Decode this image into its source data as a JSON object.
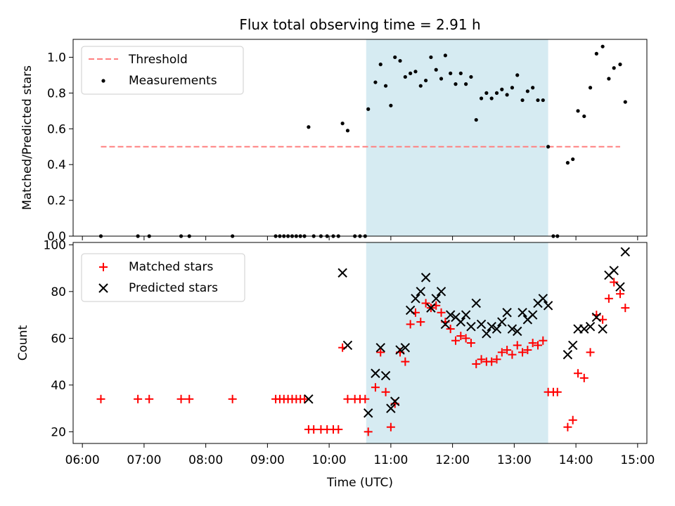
{
  "figure_title": "Flux total observing time = 2.91 h",
  "chart_data": [
    {
      "type": "scatter",
      "title": "Flux total observing time = 2.91 h",
      "ylabel": "Matched/Predicted stars",
      "xlabel": "",
      "x_unit": "hours (UTC)",
      "xlim": [
        "06:00",
        "15:00"
      ],
      "ylim": [
        0,
        1.1
      ],
      "yticks": [
        "0.0",
        "0.2",
        "0.4",
        "0.6",
        "0.8",
        "1.0"
      ],
      "legend": {
        "position": "top-left",
        "entries": [
          "Threshold",
          "Measurements"
        ]
      },
      "shaded_region": {
        "from": "10:36",
        "to": "13:33",
        "color": "#add8e6"
      },
      "threshold": {
        "name": "Threshold",
        "y": 0.5,
        "from": "06:18",
        "to": "14:43",
        "color": "#ff8080",
        "style": "dashed"
      },
      "series": [
        {
          "name": "Measurements",
          "color": "#000000",
          "points": [
            [
              "06:18",
              0
            ],
            [
              "06:54",
              0
            ],
            [
              "07:05",
              0
            ],
            [
              "07:36",
              0
            ],
            [
              "07:44",
              0
            ],
            [
              "08:26",
              0
            ],
            [
              "09:08",
              0
            ],
            [
              "09:12",
              0
            ],
            [
              "09:16",
              0
            ],
            [
              "09:20",
              0
            ],
            [
              "09:24",
              0
            ],
            [
              "09:28",
              0
            ],
            [
              "09:32",
              0
            ],
            [
              "09:36",
              0
            ],
            [
              "09:40",
              0.61
            ],
            [
              "09:45",
              0
            ],
            [
              "09:52",
              0
            ],
            [
              "09:58",
              0
            ],
            [
              "10:04",
              0
            ],
            [
              "10:09",
              0
            ],
            [
              "10:13",
              0.63
            ],
            [
              "10:18",
              0.59
            ],
            [
              "10:25",
              0
            ],
            [
              "10:30",
              0
            ],
            [
              "10:35",
              0
            ],
            [
              "10:38",
              0.71
            ],
            [
              "10:45",
              0.86
            ],
            [
              "10:50",
              0.96
            ],
            [
              "10:55",
              0.84
            ],
            [
              "11:00",
              0.73
            ],
            [
              "11:04",
              1.0
            ],
            [
              "11:09",
              0.98
            ],
            [
              "11:14",
              0.89
            ],
            [
              "11:19",
              0.91
            ],
            [
              "11:24",
              0.92
            ],
            [
              "11:29",
              0.84
            ],
            [
              "11:34",
              0.87
            ],
            [
              "11:39",
              1.0
            ],
            [
              "11:44",
              0.93
            ],
            [
              "11:49",
              0.88
            ],
            [
              "11:53",
              1.01
            ],
            [
              "11:58",
              0.91
            ],
            [
              "12:03",
              0.85
            ],
            [
              "12:08",
              0.91
            ],
            [
              "12:13",
              0.85
            ],
            [
              "12:18",
              0.89
            ],
            [
              "12:23",
              0.65
            ],
            [
              "12:28",
              0.77
            ],
            [
              "12:33",
              0.8
            ],
            [
              "12:38",
              0.77
            ],
            [
              "12:43",
              0.8
            ],
            [
              "12:48",
              0.82
            ],
            [
              "12:53",
              0.79
            ],
            [
              "12:58",
              0.83
            ],
            [
              "13:03",
              0.9
            ],
            [
              "13:08",
              0.76
            ],
            [
              "13:13",
              0.81
            ],
            [
              "13:18",
              0.83
            ],
            [
              "13:23",
              0.76
            ],
            [
              "13:28",
              0.76
            ],
            [
              "13:33",
              0.5
            ],
            [
              "13:38",
              0
            ],
            [
              "13:42",
              0
            ],
            [
              "13:52",
              0.41
            ],
            [
              "13:57",
              0.43
            ],
            [
              "14:02",
              0.7
            ],
            [
              "14:08",
              0.67
            ],
            [
              "14:14",
              0.83
            ],
            [
              "14:20",
              1.02
            ],
            [
              "14:26",
              1.06
            ],
            [
              "14:32",
              0.88
            ],
            [
              "14:37",
              0.94
            ],
            [
              "14:43",
              0.96
            ],
            [
              "14:48",
              0.75
            ]
          ]
        }
      ]
    },
    {
      "type": "scatter",
      "title": "",
      "ylabel": "Count",
      "xlabel": "Time (UTC)",
      "x_unit": "hours (UTC)",
      "xlim": [
        "06:00",
        "15:00"
      ],
      "ylim": [
        15,
        101
      ],
      "yticks": [
        "20",
        "40",
        "60",
        "80",
        "100"
      ],
      "xticks": [
        "06:00",
        "07:00",
        "08:00",
        "09:00",
        "10:00",
        "11:00",
        "12:00",
        "13:00",
        "14:00",
        "15:00"
      ],
      "legend": {
        "position": "top-left",
        "entries": [
          "Matched stars",
          "Predicted stars"
        ]
      },
      "shaded_region": {
        "from": "10:36",
        "to": "13:33",
        "color": "#add8e6"
      },
      "series": [
        {
          "name": "Matched stars",
          "marker": "+",
          "color": "#ff0000",
          "points": [
            [
              "06:18",
              34
            ],
            [
              "06:54",
              34
            ],
            [
              "07:05",
              34
            ],
            [
              "07:36",
              34
            ],
            [
              "07:44",
              34
            ],
            [
              "08:26",
              34
            ],
            [
              "09:08",
              34
            ],
            [
              "09:12",
              34
            ],
            [
              "09:16",
              34
            ],
            [
              "09:20",
              34
            ],
            [
              "09:24",
              34
            ],
            [
              "09:28",
              34
            ],
            [
              "09:32",
              34
            ],
            [
              "09:36",
              34
            ],
            [
              "09:40",
              21
            ],
            [
              "09:45",
              21
            ],
            [
              "09:52",
              21
            ],
            [
              "09:58",
              21
            ],
            [
              "10:04",
              21
            ],
            [
              "10:09",
              21
            ],
            [
              "10:13",
              56
            ],
            [
              "10:18",
              34
            ],
            [
              "10:25",
              34
            ],
            [
              "10:30",
              34
            ],
            [
              "10:35",
              34
            ],
            [
              "10:38",
              20
            ],
            [
              "10:45",
              39
            ],
            [
              "10:50",
              54
            ],
            [
              "10:55",
              37
            ],
            [
              "11:00",
              22
            ],
            [
              "11:04",
              32
            ],
            [
              "11:09",
              54
            ],
            [
              "11:14",
              50
            ],
            [
              "11:19",
              66
            ],
            [
              "11:24",
              71
            ],
            [
              "11:29",
              67
            ],
            [
              "11:34",
              75
            ],
            [
              "11:39",
              73
            ],
            [
              "11:44",
              74
            ],
            [
              "11:49",
              71
            ],
            [
              "11:53",
              67
            ],
            [
              "11:58",
              64
            ],
            [
              "12:03",
              59
            ],
            [
              "12:08",
              61
            ],
            [
              "12:13",
              60
            ],
            [
              "12:18",
              58
            ],
            [
              "12:23",
              49
            ],
            [
              "12:28",
              51
            ],
            [
              "12:33",
              50
            ],
            [
              "12:38",
              50
            ],
            [
              "12:43",
              51
            ],
            [
              "12:48",
              54
            ],
            [
              "12:53",
              55
            ],
            [
              "12:58",
              53
            ],
            [
              "13:03",
              57
            ],
            [
              "13:08",
              54
            ],
            [
              "13:13",
              55
            ],
            [
              "13:18",
              58
            ],
            [
              "13:23",
              57
            ],
            [
              "13:28",
              59
            ],
            [
              "13:33",
              37
            ],
            [
              "13:38",
              37
            ],
            [
              "13:42",
              37
            ],
            [
              "13:52",
              22
            ],
            [
              "13:57",
              25
            ],
            [
              "14:02",
              45
            ],
            [
              "14:08",
              43
            ],
            [
              "14:14",
              54
            ],
            [
              "14:20",
              70
            ],
            [
              "14:26",
              68
            ],
            [
              "14:32",
              77
            ],
            [
              "14:37",
              84
            ],
            [
              "14:43",
              79
            ],
            [
              "14:48",
              73
            ]
          ]
        },
        {
          "name": "Predicted stars",
          "marker": "x",
          "color": "#000000",
          "points": [
            [
              "09:40",
              34
            ],
            [
              "10:13",
              88
            ],
            [
              "10:18",
              57
            ],
            [
              "10:38",
              28
            ],
            [
              "10:45",
              45
            ],
            [
              "10:50",
              56
            ],
            [
              "10:55",
              44
            ],
            [
              "11:00",
              30
            ],
            [
              "11:04",
              33
            ],
            [
              "11:09",
              55
            ],
            [
              "11:14",
              56
            ],
            [
              "11:19",
              72
            ],
            [
              "11:24",
              77
            ],
            [
              "11:29",
              80
            ],
            [
              "11:34",
              86
            ],
            [
              "11:39",
              73
            ],
            [
              "11:44",
              77
            ],
            [
              "11:49",
              80
            ],
            [
              "11:53",
              66
            ],
            [
              "11:58",
              70
            ],
            [
              "12:03",
              69
            ],
            [
              "12:08",
              67
            ],
            [
              "12:13",
              70
            ],
            [
              "12:18",
              65
            ],
            [
              "12:23",
              75
            ],
            [
              "12:28",
              66
            ],
            [
              "12:33",
              62
            ],
            [
              "12:38",
              65
            ],
            [
              "12:43",
              64
            ],
            [
              "12:48",
              67
            ],
            [
              "12:53",
              71
            ],
            [
              "12:58",
              64
            ],
            [
              "13:03",
              63
            ],
            [
              "13:08",
              71
            ],
            [
              "13:13",
              68
            ],
            [
              "13:18",
              70
            ],
            [
              "13:23",
              75
            ],
            [
              "13:28",
              77
            ],
            [
              "13:33",
              74
            ],
            [
              "13:52",
              53
            ],
            [
              "13:57",
              57
            ],
            [
              "14:02",
              64
            ],
            [
              "14:08",
              64
            ],
            [
              "14:14",
              65
            ],
            [
              "14:20",
              69
            ],
            [
              "14:26",
              64
            ],
            [
              "14:32",
              87
            ],
            [
              "14:37",
              89
            ],
            [
              "14:43",
              82
            ],
            [
              "14:48",
              97
            ]
          ]
        }
      ]
    }
  ]
}
